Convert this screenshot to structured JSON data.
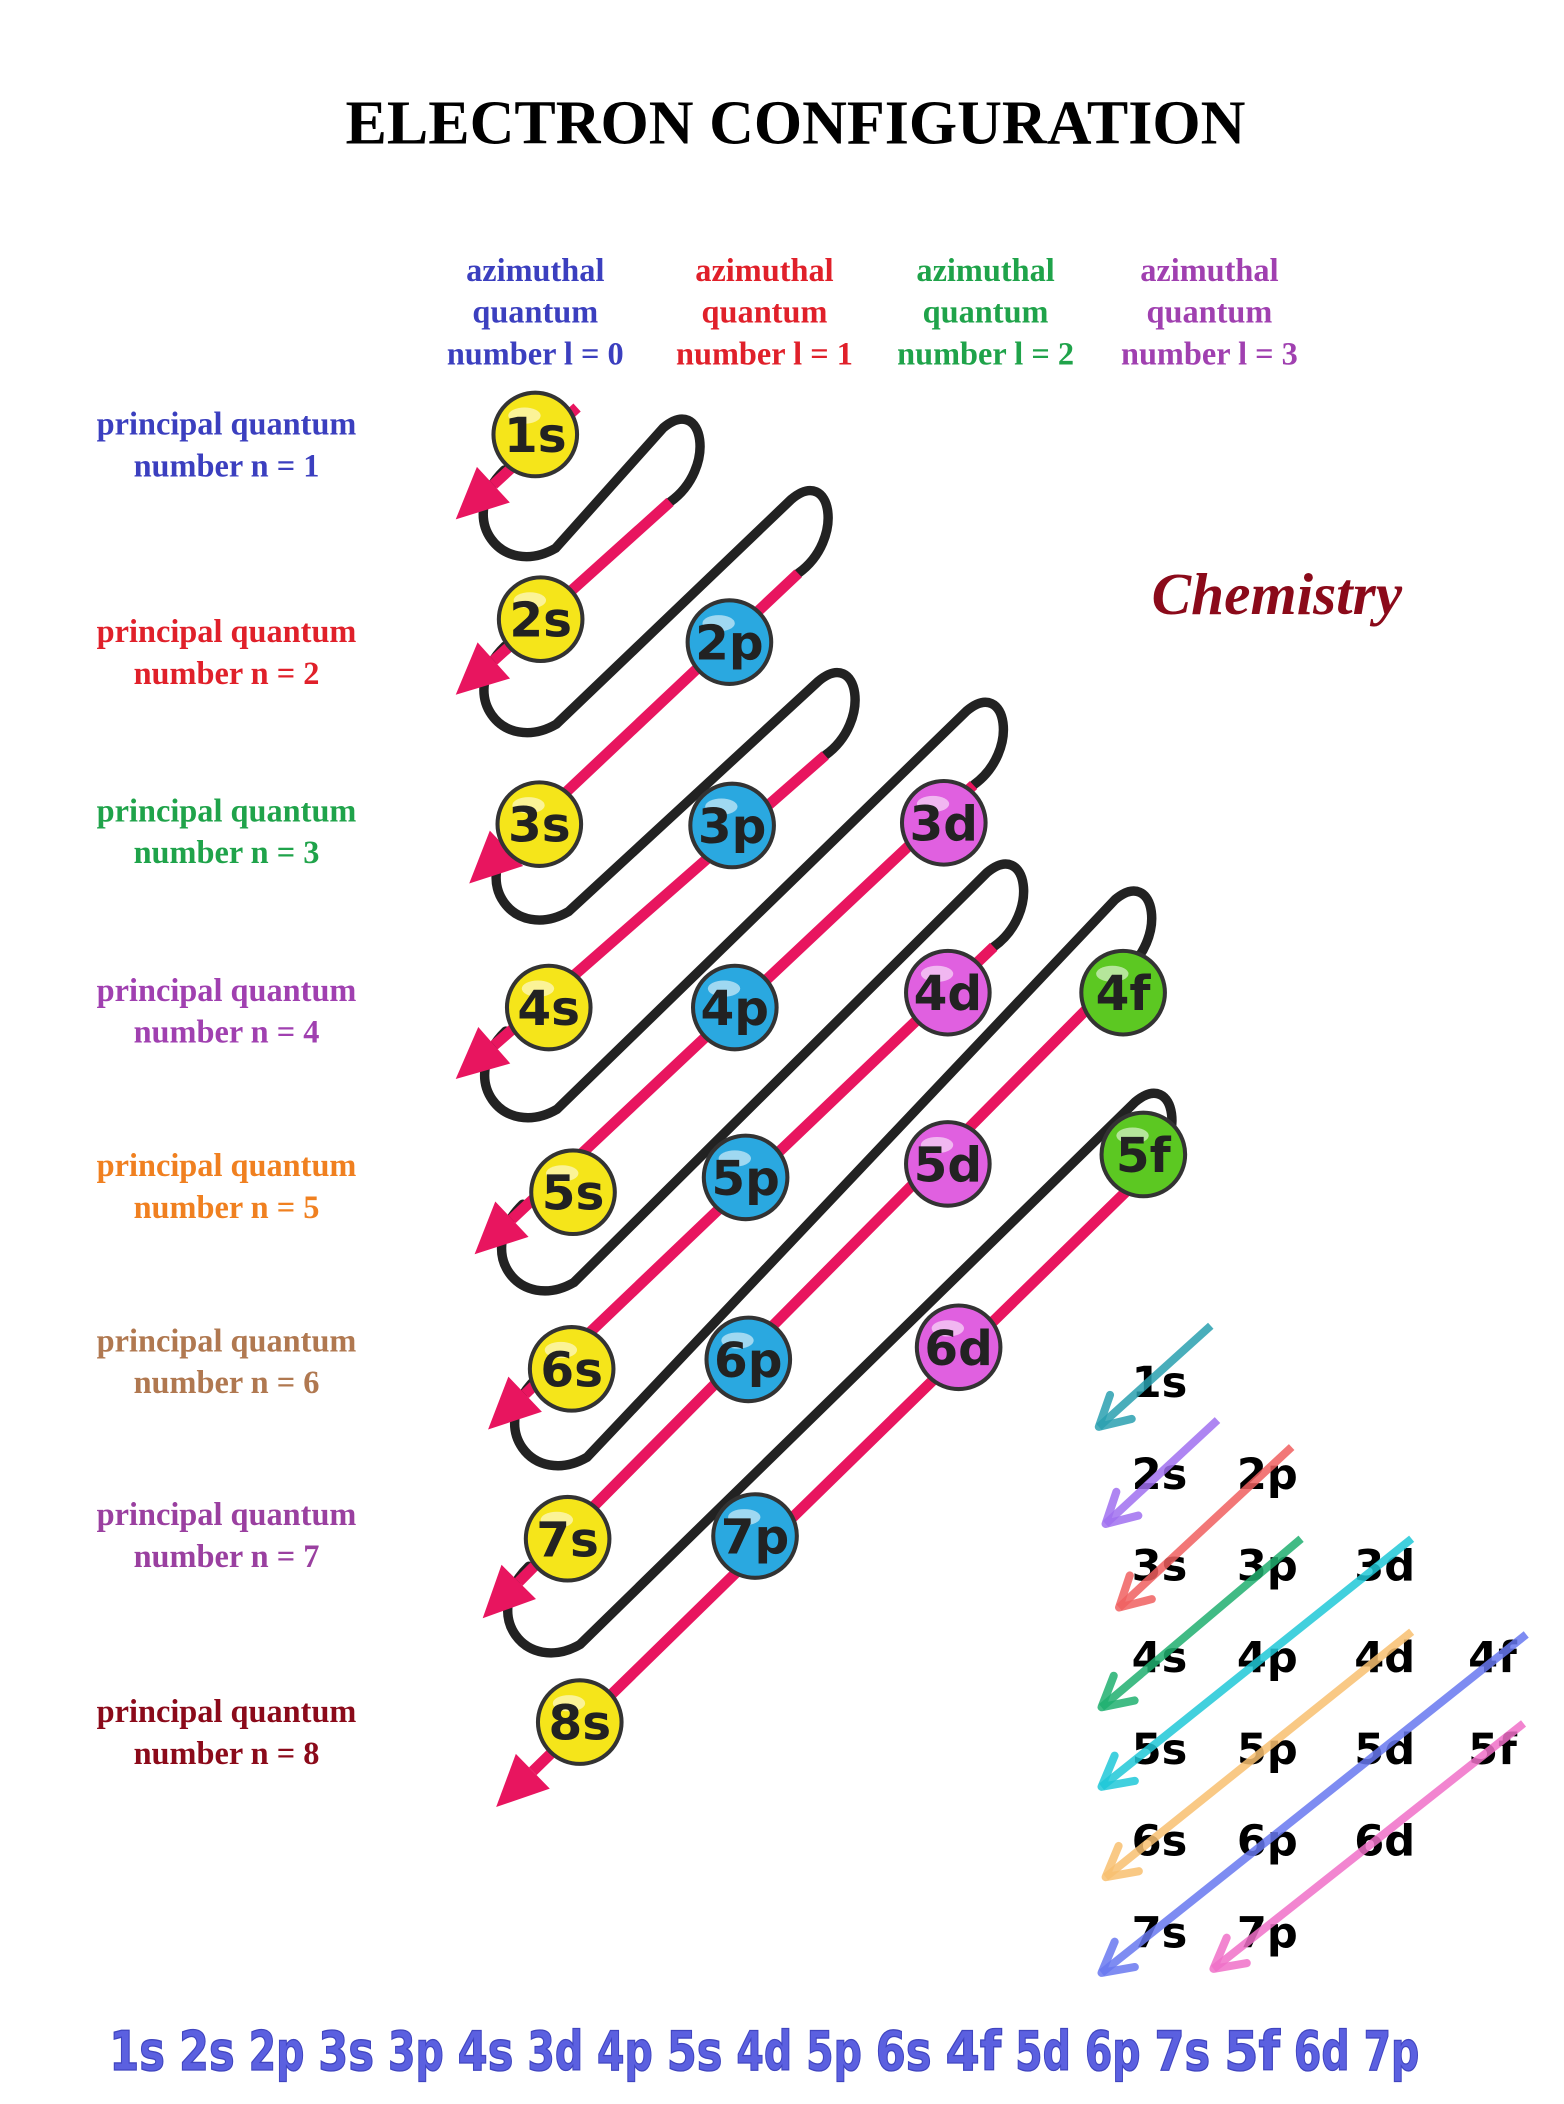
{
  "title": "ELECTRON CONFIGURATION",
  "brand": "Chemistry",
  "azimuthal": [
    {
      "lines": [
        "azimuthal",
        "quantum",
        "number l = 0"
      ],
      "color": "#3b3fbf"
    },
    {
      "lines": [
        "azimuthal",
        "quantum",
        "number l = 1"
      ],
      "color": "#e0202a"
    },
    {
      "lines": [
        "azimuthal",
        "quantum",
        "number l = 2"
      ],
      "color": "#1fa34a"
    },
    {
      "lines": [
        "azimuthal",
        "quantum",
        "number l = 3"
      ],
      "color": "#a040b0"
    }
  ],
  "principal": [
    {
      "lines": [
        "principal quantum",
        "number n = 1"
      ],
      "color": "#3b3fbf"
    },
    {
      "lines": [
        "principal quantum",
        "number n = 2"
      ],
      "color": "#e0202a"
    },
    {
      "lines": [
        "principal quantum",
        "number  n = 3"
      ],
      "color": "#1fa34a"
    },
    {
      "lines": [
        "principal quantum",
        "number n = 4"
      ],
      "color": "#a040b0"
    },
    {
      "lines": [
        "principal quantum",
        "number n = 5"
      ],
      "color": "#f08020"
    },
    {
      "lines": [
        "principal quantum",
        "number n = 6"
      ],
      "color": "#b07850"
    },
    {
      "lines": [
        "principal quantum",
        "number n = 7"
      ],
      "color": "#9a40a0"
    },
    {
      "lines": [
        "principal quantum",
        "number n = 8"
      ],
      "color": "#8b0a1a"
    }
  ],
  "orbitals": [
    "1s",
    "2s",
    "2p",
    "3s",
    "3p",
    "3d",
    "4s",
    "4p",
    "4d",
    "4f",
    "5s",
    "5p",
    "5d",
    "5f",
    "6s",
    "6p",
    "6d",
    "7s",
    "7p",
    "8s"
  ],
  "orbital_colors": {
    "s": "#f5e51a",
    "p": "#2aa8e0",
    "d": "#e060e0",
    "f": "#5cc822"
  },
  "mini_rows": [
    [
      "1s"
    ],
    [
      "2s",
      "2p"
    ],
    [
      "3s",
      "3p",
      "3d"
    ],
    [
      "4s",
      "4p",
      "4d",
      "4f"
    ],
    [
      "5s",
      "5p",
      "5d",
      "5f"
    ],
    [
      "6s",
      "6p",
      "6d"
    ],
    [
      "7s",
      "7p"
    ]
  ],
  "mini_arrow_colors": [
    "#2aa0b0",
    "#a070f0",
    "#f06060",
    "#20b070",
    "#20c8d8",
    "#f8c070",
    "#6878f0",
    "#f070c8"
  ],
  "sequence": [
    "1s",
    "2s",
    "2p",
    "3s",
    "3p",
    "4s",
    "3d",
    "4p",
    "5s",
    "4d",
    "5p",
    "6s",
    "4f",
    "5d",
    "6p",
    "7s",
    "5f",
    "6d",
    "7p"
  ],
  "colors": {
    "pink_line": "#e8155f",
    "loop": "#222222",
    "brand": "#8b0a1a",
    "sequence": "#5b60e0"
  }
}
